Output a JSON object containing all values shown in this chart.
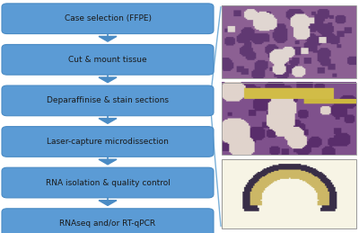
{
  "steps": [
    "Case selection (FFPE)",
    "Cut & mount tissue",
    "Deparaffinise & stain sections",
    "Laser-capture microdissection",
    "RNA isolation & quality control",
    "RNAseq and/or RT-qPCR"
  ],
  "box_color": "#5b9bd5",
  "box_edge_color": "#4a8bc4",
  "arrow_color": "#4a8bc4",
  "text_color": "#1a1a1a",
  "bg_color": "#ffffff",
  "font_size": 6.5,
  "line_color": "#7ab0d8"
}
